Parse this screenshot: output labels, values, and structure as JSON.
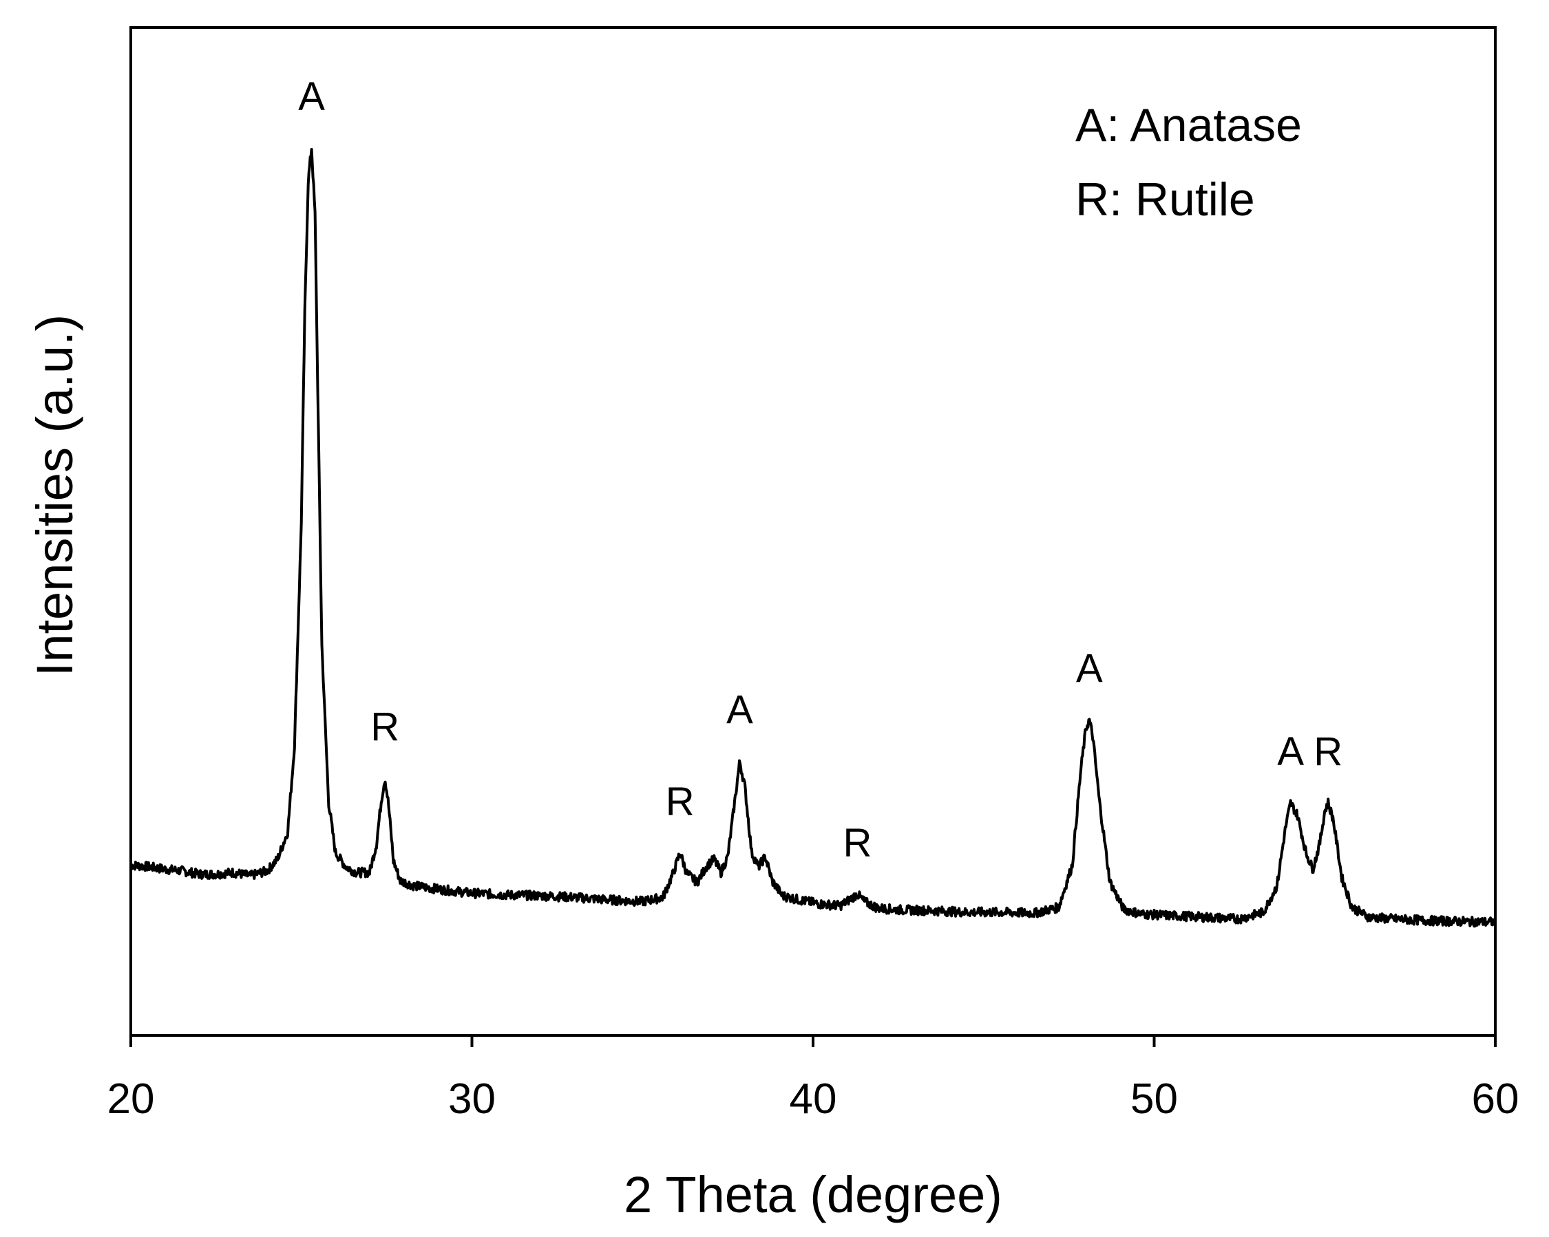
{
  "chart_data": {
    "type": "line",
    "title": "",
    "xlabel": "2 Theta (degree)",
    "ylabel": "Intensities (a.u.)",
    "xlim": [
      20,
      60
    ],
    "ylim": [
      0,
      100
    ],
    "xticks": [
      20,
      30,
      40,
      50,
      60
    ],
    "y_tick_labels_shown": false,
    "grid": false,
    "legend_position": "top-right",
    "legend": [
      "A: Anatase",
      "R: Rutile"
    ],
    "series_color": "#000000",
    "peaks": [
      {
        "x": 25.3,
        "y": 100,
        "label": "A"
      },
      {
        "x": 27.45,
        "y": 24,
        "label": "R"
      },
      {
        "x": 36.1,
        "y": 15,
        "label": "R"
      },
      {
        "x": 37.85,
        "y": 26,
        "label": "A"
      },
      {
        "x": 41.3,
        "y": 10,
        "label": "R"
      },
      {
        "x": 48.1,
        "y": 31,
        "label": "A"
      },
      {
        "x": 54.0,
        "y": 21,
        "label": "A"
      },
      {
        "x": 55.1,
        "y": 21,
        "label": "R"
      }
    ],
    "series": [
      {
        "x": [
          20.0,
          20.5,
          21.0,
          21.5,
          22.0,
          22.5,
          23.0,
          23.5,
          24.0,
          24.3,
          24.6,
          24.8,
          25.0,
          25.1,
          25.2,
          25.3,
          25.4,
          25.5,
          25.6,
          25.8,
          26.0,
          26.3,
          26.6,
          27.0,
          27.2,
          27.35,
          27.45,
          27.55,
          27.7,
          27.9,
          28.3,
          29.0,
          30.0,
          31.0,
          32.0,
          33.0,
          34.0,
          35.0,
          35.6,
          35.9,
          36.1,
          36.3,
          36.6,
          36.9,
          37.1,
          37.3,
          37.5,
          37.7,
          37.85,
          38.0,
          38.2,
          38.4,
          38.6,
          38.8,
          39.1,
          39.6,
          40.2,
          40.8,
          41.1,
          41.3,
          41.5,
          41.9,
          42.5,
          43.5,
          44.5,
          45.5,
          46.5,
          47.2,
          47.6,
          47.85,
          48.0,
          48.1,
          48.2,
          48.4,
          48.7,
          49.1,
          49.6,
          50.5,
          51.5,
          52.5,
          53.2,
          53.6,
          53.85,
          54.0,
          54.2,
          54.45,
          54.65,
          54.85,
          55.0,
          55.1,
          55.25,
          55.5,
          55.8,
          56.3,
          57.0,
          58.0,
          59.0,
          60.0
        ],
        "y": [
          13.5,
          13.3,
          13.0,
          12.8,
          12.4,
          12.4,
          12.6,
          12.2,
          12.8,
          14.2,
          17.5,
          28,
          55,
          80,
          96,
          100,
          92,
          66,
          40,
          21,
          15,
          13.3,
          12.6,
          12.6,
          16,
          21.5,
          24,
          21,
          14,
          11.6,
          11.0,
          10.6,
          10.1,
          9.9,
          9.8,
          9.6,
          9.3,
          9.1,
          9.6,
          12.5,
          15,
          12.5,
          11.4,
          13.5,
          14.2,
          12.6,
          14.5,
          21,
          26,
          23,
          15,
          13.3,
          14.5,
          11.6,
          9.8,
          9.3,
          8.8,
          8.6,
          9.4,
          10,
          9.1,
          8.3,
          8.1,
          8.0,
          7.8,
          7.8,
          7.7,
          8.4,
          13.5,
          25,
          30,
          31,
          29,
          21,
          11.5,
          8.2,
          7.6,
          7.4,
          7.2,
          7.0,
          7.8,
          11,
          18,
          21,
          19.5,
          15,
          13,
          16,
          20,
          21,
          19,
          12,
          8.4,
          7.2,
          7.0,
          6.8,
          6.7,
          6.6
        ]
      }
    ]
  }
}
